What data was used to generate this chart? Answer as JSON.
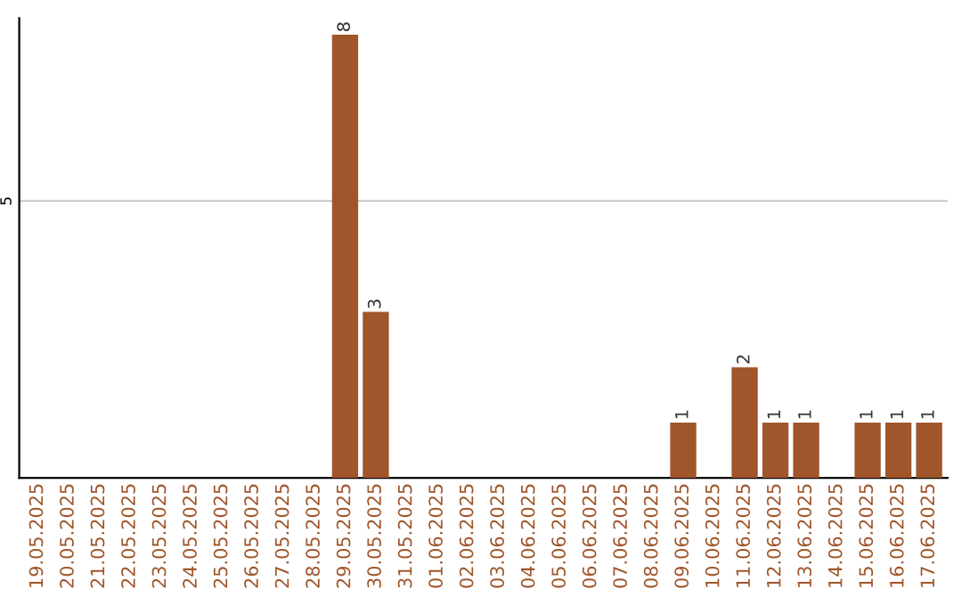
{
  "chart_data": {
    "type": "bar",
    "categories": [
      "19.05.2025",
      "20.05.2025",
      "21.05.2025",
      "22.05.2025",
      "23.05.2025",
      "24.05.2025",
      "25.05.2025",
      "26.05.2025",
      "27.05.2025",
      "28.05.2025",
      "29.05.2025",
      "30.05.2025",
      "31.05.2025",
      "01.06.2025",
      "02.06.2025",
      "03.06.2025",
      "04.06.2025",
      "05.06.2025",
      "06.06.2025",
      "07.06.2025",
      "08.06.2025",
      "09.06.2025",
      "10.06.2025",
      "11.06.2025",
      "12.06.2025",
      "13.06.2025",
      "14.06.2025",
      "15.06.2025",
      "16.06.2025",
      "17.06.2025"
    ],
    "values": [
      0,
      0,
      0,
      0,
      0,
      0,
      0,
      0,
      0,
      0,
      8,
      3,
      0,
      0,
      0,
      0,
      0,
      0,
      0,
      0,
      0,
      1,
      0,
      2,
      1,
      1,
      0,
      1,
      1,
      1
    ],
    "value_labels": [
      null,
      null,
      null,
      null,
      null,
      null,
      null,
      null,
      null,
      null,
      "8",
      "3",
      null,
      null,
      null,
      null,
      null,
      null,
      null,
      null,
      null,
      "1",
      null,
      "2",
      "1",
      "1",
      null,
      "1",
      "1",
      "1"
    ],
    "color": "#a0562a",
    "ylim": [
      0,
      8.3
    ],
    "yticks": [
      5
    ],
    "grid": "y"
  }
}
